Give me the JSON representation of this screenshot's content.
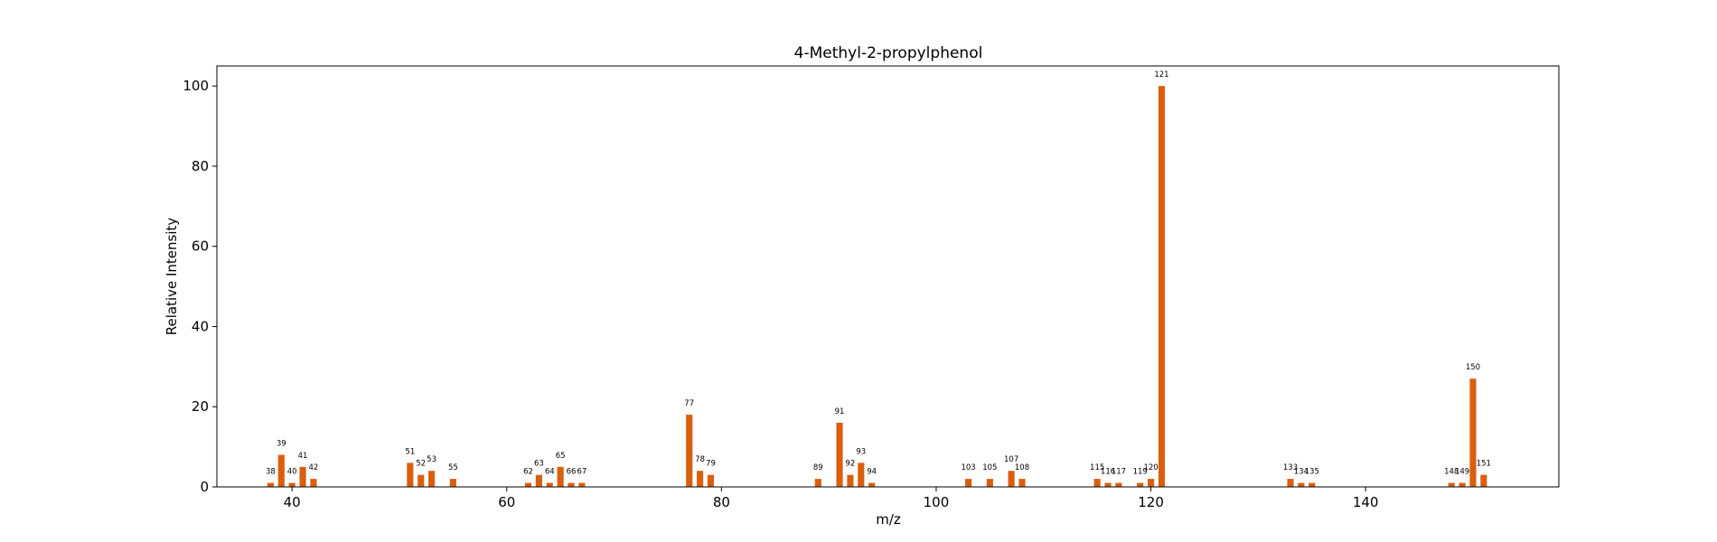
{
  "chart_data": {
    "type": "bar",
    "title": "4-Methyl-2-propylphenol",
    "xlabel": "m/z",
    "ylabel": "Relative Intensity",
    "xlim": [
      33,
      158
    ],
    "ylim": [
      0,
      105
    ],
    "xticks": [
      40,
      60,
      80,
      100,
      120,
      140
    ],
    "yticks": [
      0,
      20,
      40,
      60,
      80,
      100
    ],
    "grid": false,
    "bar_color": "#d95f0e",
    "x": [
      38,
      39,
      40,
      41,
      42,
      51,
      52,
      53,
      55,
      62,
      63,
      64,
      65,
      66,
      67,
      77,
      78,
      79,
      89,
      91,
      92,
      93,
      94,
      103,
      105,
      107,
      108,
      115,
      116,
      117,
      119,
      120,
      121,
      133,
      134,
      135,
      148,
      149,
      150,
      151
    ],
    "values": [
      1,
      8,
      1,
      5,
      2,
      6,
      3,
      4,
      2,
      1,
      3,
      1,
      5,
      1,
      1,
      18,
      4,
      3,
      2,
      16,
      3,
      6,
      1,
      2,
      2,
      4,
      2,
      2,
      1,
      1,
      1,
      2,
      100,
      2,
      1,
      1,
      1,
      1,
      27,
      3
    ],
    "labels": [
      "38",
      "39",
      "40",
      "41",
      "42",
      "51",
      "52",
      "53",
      "55",
      "62",
      "63",
      "64",
      "65",
      "66",
      "67",
      "77",
      "78",
      "79",
      "89",
      "91",
      "92",
      "93",
      "94",
      "103",
      "105",
      "107",
      "108",
      "115",
      "116",
      "117",
      "119",
      "120",
      "121",
      "133",
      "134",
      "135",
      "148",
      "149",
      "150",
      "151"
    ]
  }
}
